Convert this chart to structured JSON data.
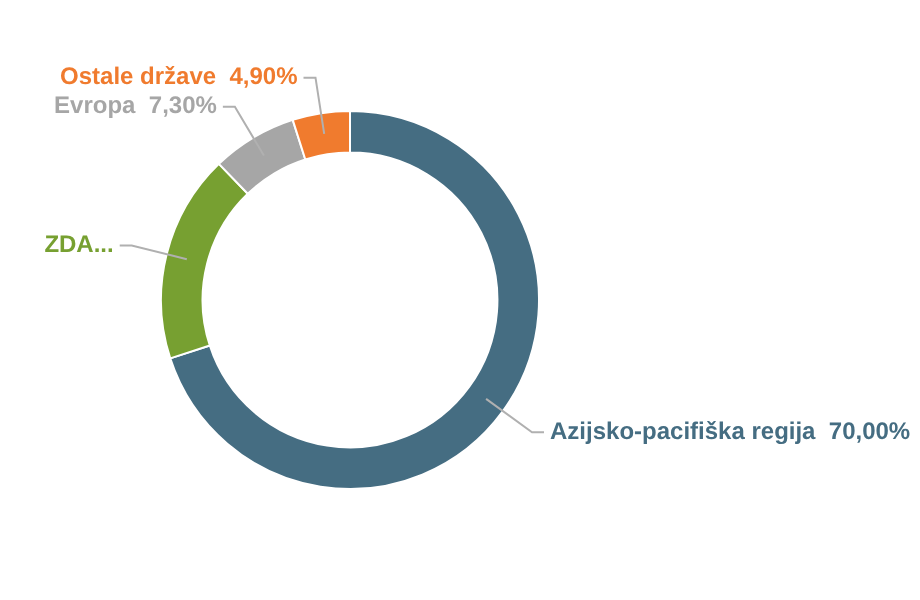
{
  "chart_data": {
    "type": "donut",
    "categories": [
      "Azijsko-pacifiška regija",
      "ZDA...",
      "Evropa",
      "Ostale države"
    ],
    "values": [
      70.0,
      17.8,
      7.3,
      4.9
    ],
    "value_labels": [
      "70,00%",
      null,
      "7,30%",
      "4,90%"
    ],
    "colors": [
      "#456d82",
      "#77a031",
      "#a6a6a6",
      "#f07b2e"
    ],
    "legend": false
  }
}
